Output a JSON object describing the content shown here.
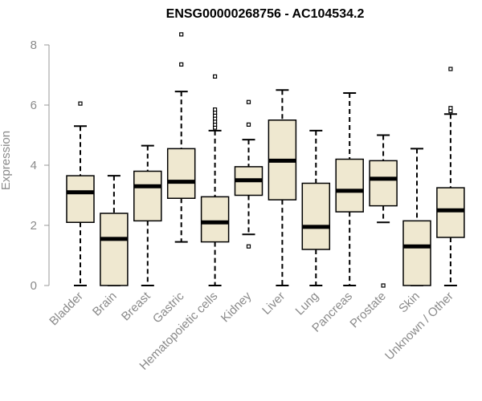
{
  "chart_data": {
    "type": "boxplot",
    "title": "ENSG00000268756 - AC104534.2",
    "xlabel": "",
    "ylabel": "Expression",
    "ylim": [
      0,
      8
    ],
    "yticks": [
      0,
      2,
      4,
      6,
      8
    ],
    "grid": false,
    "box_fill": "#efe8d0",
    "categories": [
      "Bladder",
      "Brain",
      "Breast",
      "Gastric",
      "Hematopoietic cells",
      "Kidney",
      "Liver",
      "Lung",
      "Pancreas",
      "Prostate",
      "Skin",
      "Unknown / Other"
    ],
    "boxes": [
      {
        "min": 0.0,
        "q1": 2.1,
        "median": 3.1,
        "q3": 3.65,
        "max": 5.3,
        "outliers": [
          6.05
        ]
      },
      {
        "min": 0.0,
        "q1": 0.0,
        "median": 1.55,
        "q3": 2.4,
        "max": 3.65,
        "outliers": []
      },
      {
        "min": 0.0,
        "q1": 2.15,
        "median": 3.3,
        "q3": 3.8,
        "max": 4.65,
        "outliers": []
      },
      {
        "min": 1.45,
        "q1": 2.9,
        "median": 3.45,
        "q3": 4.55,
        "max": 6.45,
        "outliers": [
          7.35,
          8.35
        ]
      },
      {
        "min": 0.0,
        "q1": 1.45,
        "median": 2.1,
        "q3": 2.95,
        "max": 5.15,
        "outliers": [
          5.25,
          5.35,
          5.45,
          5.55,
          5.65,
          5.75,
          5.85,
          6.95
        ]
      },
      {
        "min": 1.7,
        "q1": 3.0,
        "median": 3.5,
        "q3": 3.95,
        "max": 4.85,
        "outliers": [
          1.3,
          5.35,
          6.1
        ]
      },
      {
        "min": 0.0,
        "q1": 2.85,
        "median": 4.15,
        "q3": 5.5,
        "max": 6.5,
        "outliers": []
      },
      {
        "min": 0.0,
        "q1": 1.2,
        "median": 1.95,
        "q3": 3.4,
        "max": 5.15,
        "outliers": []
      },
      {
        "min": 0.0,
        "q1": 2.45,
        "median": 3.15,
        "q3": 4.2,
        "max": 6.4,
        "outliers": []
      },
      {
        "min": 2.1,
        "q1": 2.65,
        "median": 3.55,
        "q3": 4.15,
        "max": 5.0,
        "outliers": [
          0.0
        ]
      },
      {
        "min": 0.0,
        "q1": 0.0,
        "median": 1.3,
        "q3": 2.15,
        "max": 4.55,
        "outliers": []
      },
      {
        "min": 0.0,
        "q1": 1.6,
        "median": 2.5,
        "q3": 3.25,
        "max": 5.7,
        "outliers": [
          5.8,
          5.9,
          7.2
        ]
      }
    ]
  }
}
